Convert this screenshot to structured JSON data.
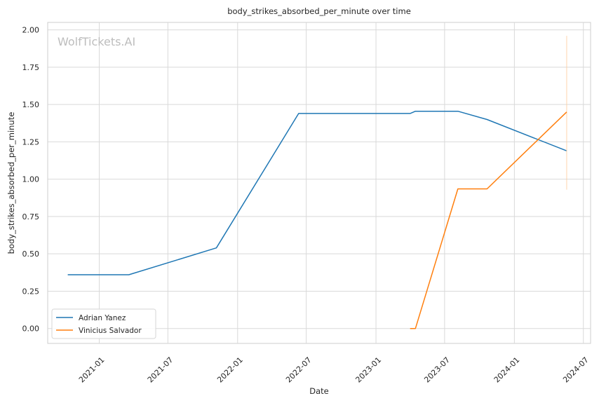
{
  "chart_data": {
    "type": "line",
    "title": "body_strikes_absorbed_per_minute over time",
    "xlabel": "Date",
    "ylabel": "body_strikes_absorbed_per_minute",
    "watermark": "WolfTickets.AI",
    "x_ticks": [
      "2021-01",
      "2021-07",
      "2022-01",
      "2022-07",
      "2023-01",
      "2023-07",
      "2024-01",
      "2024-07"
    ],
    "y_ticks": [
      "0.00",
      "0.25",
      "0.50",
      "0.75",
      "1.00",
      "1.25",
      "1.50",
      "1.75",
      "2.00"
    ],
    "xlim": [
      "2020-08-18",
      "2024-07-20"
    ],
    "ylim": [
      -0.1,
      2.05
    ],
    "grid": true,
    "legend_position": "lower-left",
    "series": [
      {
        "name": "Adrian Yanez",
        "color": "#1f77b4",
        "points": [
          [
            "2020-10-10",
            0.36
          ],
          [
            "2021-03-20",
            0.36
          ],
          [
            "2021-11-06",
            0.54
          ],
          [
            "2022-06-11",
            1.44
          ],
          [
            "2023-04-01",
            1.44
          ],
          [
            "2023-04-15",
            1.455
          ],
          [
            "2023-08-05",
            1.455
          ],
          [
            "2023-10-21",
            1.4
          ],
          [
            "2024-05-18",
            1.19
          ]
        ]
      },
      {
        "name": "Vinicius Salvador",
        "color": "#ff7f0e",
        "points": [
          [
            "2023-04-01",
            0.0
          ],
          [
            "2023-04-15",
            0.0
          ],
          [
            "2023-08-05",
            0.935
          ],
          [
            "2023-10-21",
            0.935
          ],
          [
            "2024-05-18",
            1.45
          ]
        ],
        "error_band": {
          "x": "2024-05-18",
          "low": 0.93,
          "high": 1.96,
          "color": "#ffcc99"
        }
      }
    ]
  }
}
